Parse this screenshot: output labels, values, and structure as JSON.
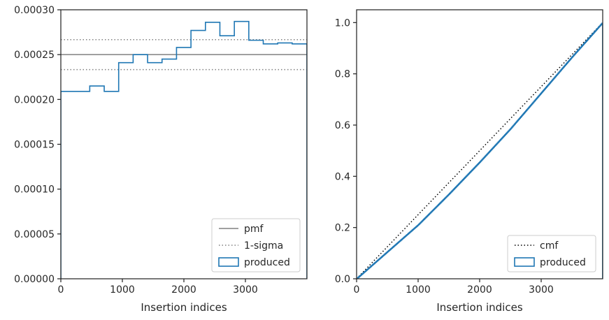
{
  "chart_data": [
    {
      "type": "line",
      "title": "",
      "xlabel": "Insertion indices",
      "ylabel": "",
      "xlim": [
        0,
        4000
      ],
      "ylim": [
        0,
        0.0003
      ],
      "x_ticks": [
        "0",
        "1000",
        "2000",
        "3000"
      ],
      "x_tick_values": [
        0,
        1000,
        2000,
        3000
      ],
      "y_ticks": [
        "0.00000",
        "0.00005",
        "0.00010",
        "0.00015",
        "0.00020",
        "0.00025",
        "0.00030"
      ],
      "y_tick_values": [
        0,
        5e-05,
        0.0001,
        0.00015,
        0.0002,
        0.00025,
        0.0003
      ],
      "grid": false,
      "legend_position": "lower-right",
      "series": [
        {
          "name": "pmf",
          "style": "solid",
          "color": "#808080",
          "value": 0.00025
        },
        {
          "name": "1-sigma",
          "style": "dotted",
          "color": "#808080",
          "values": [
            0.0002333,
            0.0002667
          ]
        },
        {
          "name": "produced",
          "style": "step",
          "color": "#1f77b4",
          "bin_edges": [
            0,
            235,
            470,
            705,
            940,
            1175,
            1410,
            1645,
            1880,
            2115,
            2350,
            2585,
            2820,
            3055,
            3290,
            3525,
            3760,
            4000
          ],
          "values": [
            0.000209,
            0.000209,
            0.000215,
            0.000209,
            0.000241,
            0.00025,
            0.000241,
            0.000245,
            0.000258,
            0.000277,
            0.000286,
            0.000271,
            0.000287,
            0.000266,
            0.000262,
            0.000263,
            0.000262
          ]
        }
      ]
    },
    {
      "type": "line",
      "title": "",
      "xlabel": "Insertion indices",
      "ylabel": "",
      "xlim": [
        0,
        4000
      ],
      "ylim": [
        0,
        1.05
      ],
      "x_ticks": [
        "0",
        "1000",
        "2000",
        "3000"
      ],
      "x_tick_values": [
        0,
        1000,
        2000,
        3000
      ],
      "y_ticks": [
        "0.0",
        "0.2",
        "0.4",
        "0.6",
        "0.8",
        "1.0"
      ],
      "y_tick_values": [
        0,
        0.2,
        0.4,
        0.6,
        0.8,
        1.0
      ],
      "grid": false,
      "legend_position": "lower-right",
      "series": [
        {
          "name": "cmf",
          "style": "dotted",
          "color": "#000000",
          "x": [
            0,
            4000
          ],
          "values": [
            0,
            1.0
          ]
        },
        {
          "name": "produced",
          "style": "step",
          "color": "#1f77b4",
          "x": [
            0,
            500,
            1000,
            1500,
            2000,
            2500,
            3000,
            3500,
            4000
          ],
          "values": [
            0,
            0.105,
            0.21,
            0.33,
            0.455,
            0.585,
            0.725,
            0.865,
            1.0
          ]
        }
      ]
    }
  ]
}
